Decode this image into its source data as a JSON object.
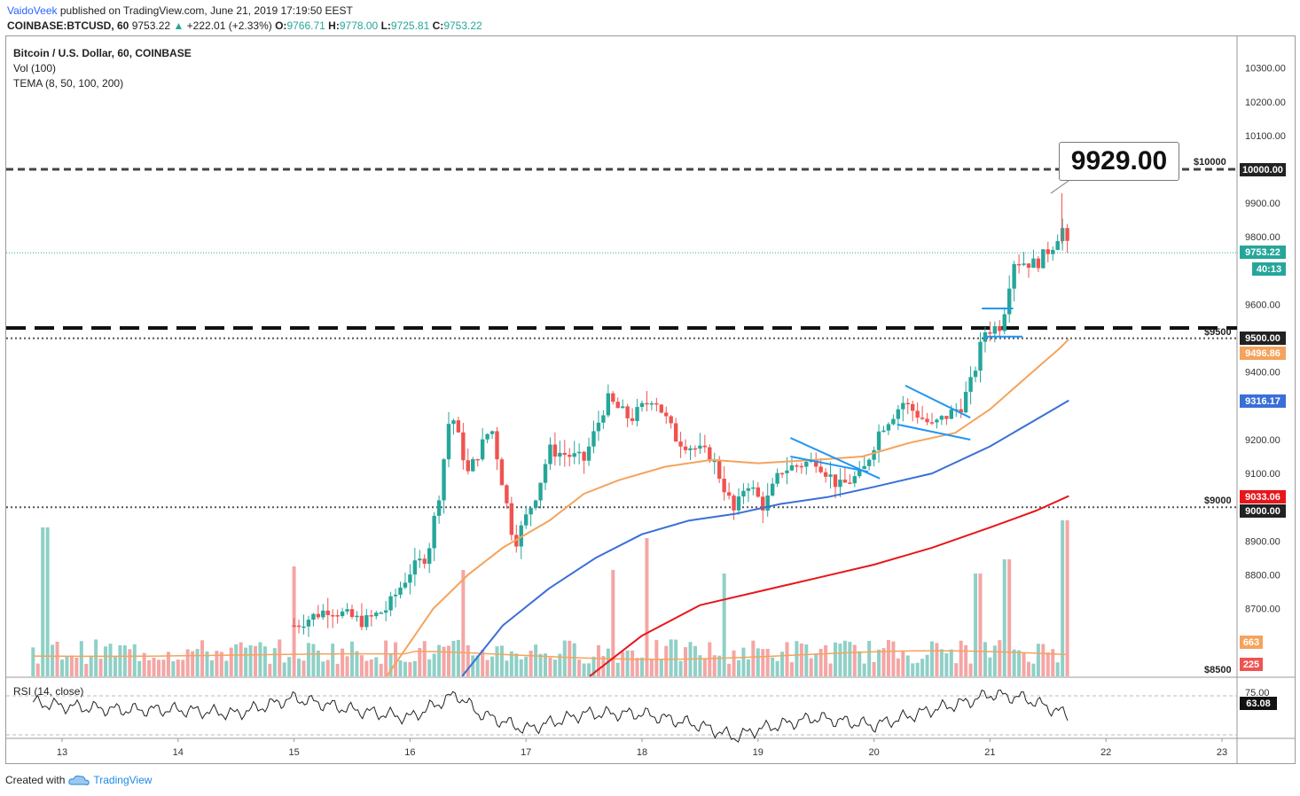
{
  "header": {
    "author": "VaidoVeek",
    "published": "published on TradingView.com, June 21, 2019 17:19:50 EEST",
    "symbol": "COINBASE:BTCUSD, 60",
    "last": "9753.22",
    "change_arrow": "▲",
    "change": "+222.01 (+2.33%)",
    "o_label": "O:",
    "o": "9766.71",
    "h_label": "H:",
    "h": "9778.00",
    "l_label": "L:",
    "l": "9725.81",
    "c_label": "C:",
    "c": "9753.22"
  },
  "legend": {
    "title": "Bitcoin / U.S. Dollar, 60, COINBASE",
    "vol": "Vol (100)",
    "tema": "TEMA (8, 50, 100, 200)"
  },
  "callout": {
    "value": "9929.00"
  },
  "levels": {
    "l10000": "$10000",
    "l9500": "$9500",
    "l9000": "$9000",
    "l8500": "$8500"
  },
  "price_tags": {
    "p10000": "10000.00",
    "last_price": "9753.22",
    "countdown": "40:13",
    "p9500": "9500.00",
    "tema_orange": "9496.86",
    "tema_blue": "9316.17",
    "tema_red": "9033.06",
    "p9000": "9000.00",
    "vol_ma": "663",
    "vol_last": "225",
    "rsi": "63.08"
  },
  "rsi": {
    "label": "RSI (14, close)"
  },
  "footer": {
    "created": "Created with",
    "brand": "TradingView"
  },
  "colors": {
    "up": "#26a69a",
    "down": "#ef5350",
    "tema8": "#f5a35c",
    "tema50": "#3a6fd8",
    "tema100": "#e8161b",
    "pattern": "#2196f3"
  },
  "chart_data": {
    "type": "candlestick",
    "title": "Bitcoin / U.S. Dollar, 60, COINBASE",
    "x_ticks": [
      "13",
      "14",
      "15",
      "16",
      "17",
      "18",
      "19",
      "20",
      "21",
      "22",
      "23"
    ],
    "y_ticks": [
      "10300.00",
      "10200.00",
      "10100.00",
      "9900.00",
      "9800.00",
      "9600.00",
      "9400.00",
      "9200.00",
      "9100.00",
      "8900.00",
      "8800.00",
      "8700.00"
    ],
    "ylim": [
      8500,
      10350
    ],
    "rsi_ticks": [
      "75.00"
    ],
    "rsi_last": 63.08,
    "series": [
      {
        "name": "TEMA 8 (orange)",
        "points": [
          [
            15.8,
            8500
          ],
          [
            16.2,
            8700
          ],
          [
            16.5,
            8800
          ],
          [
            16.8,
            8880
          ],
          [
            17.2,
            8960
          ],
          [
            17.5,
            9040
          ],
          [
            17.8,
            9080
          ],
          [
            18.2,
            9120
          ],
          [
            18.6,
            9140
          ],
          [
            19.0,
            9130
          ],
          [
            19.5,
            9140
          ],
          [
            19.9,
            9150
          ],
          [
            20.3,
            9190
          ],
          [
            20.7,
            9220
          ],
          [
            21.0,
            9290
          ],
          [
            21.3,
            9380
          ],
          [
            21.6,
            9470
          ],
          [
            21.68,
            9497
          ]
        ]
      },
      {
        "name": "TEMA 50 (blue)",
        "points": [
          [
            16.45,
            8500
          ],
          [
            16.8,
            8650
          ],
          [
            17.2,
            8760
          ],
          [
            17.6,
            8850
          ],
          [
            18.0,
            8920
          ],
          [
            18.4,
            8960
          ],
          [
            18.8,
            8980
          ],
          [
            19.2,
            9010
          ],
          [
            19.6,
            9030
          ],
          [
            20.0,
            9060
          ],
          [
            20.5,
            9100
          ],
          [
            21.0,
            9180
          ],
          [
            21.4,
            9260
          ],
          [
            21.68,
            9316
          ]
        ]
      },
      {
        "name": "TEMA 100 (red)",
        "points": [
          [
            17.55,
            8500
          ],
          [
            18.0,
            8620
          ],
          [
            18.5,
            8710
          ],
          [
            19.0,
            8750
          ],
          [
            19.5,
            8790
          ],
          [
            20.0,
            8830
          ],
          [
            20.5,
            8880
          ],
          [
            21.0,
            8940
          ],
          [
            21.4,
            8990
          ],
          [
            21.68,
            9033
          ]
        ]
      },
      {
        "name": "RSI (14, close)",
        "points": [
          [
            12.75,
            70
          ],
          [
            13.0,
            68
          ],
          [
            13.5,
            66
          ],
          [
            14.0,
            66
          ],
          [
            14.5,
            64
          ],
          [
            15.0,
            72
          ],
          [
            15.5,
            66
          ],
          [
            16.0,
            62
          ],
          [
            16.4,
            74
          ],
          [
            16.6,
            64
          ],
          [
            17.0,
            56
          ],
          [
            17.5,
            64
          ],
          [
            18.0,
            64
          ],
          [
            18.5,
            58
          ],
          [
            18.8,
            52
          ],
          [
            19.0,
            56
          ],
          [
            19.5,
            62
          ],
          [
            20.0,
            58
          ],
          [
            20.5,
            66
          ],
          [
            20.8,
            70
          ],
          [
            21.0,
            74
          ],
          [
            21.3,
            72
          ],
          [
            21.68,
            63.08
          ]
        ]
      }
    ],
    "volume_peaks": [
      {
        "x": 12.85,
        "v": 4200
      },
      {
        "x": 15.0,
        "v": 3100
      },
      {
        "x": 16.45,
        "v": 3000
      },
      {
        "x": 17.75,
        "v": 3000
      },
      {
        "x": 18.05,
        "v": 3900
      },
      {
        "x": 18.7,
        "v": 2900
      },
      {
        "x": 20.9,
        "v": 2900
      },
      {
        "x": 21.15,
        "v": 3300
      },
      {
        "x": 21.65,
        "v": 4400
      }
    ]
  }
}
